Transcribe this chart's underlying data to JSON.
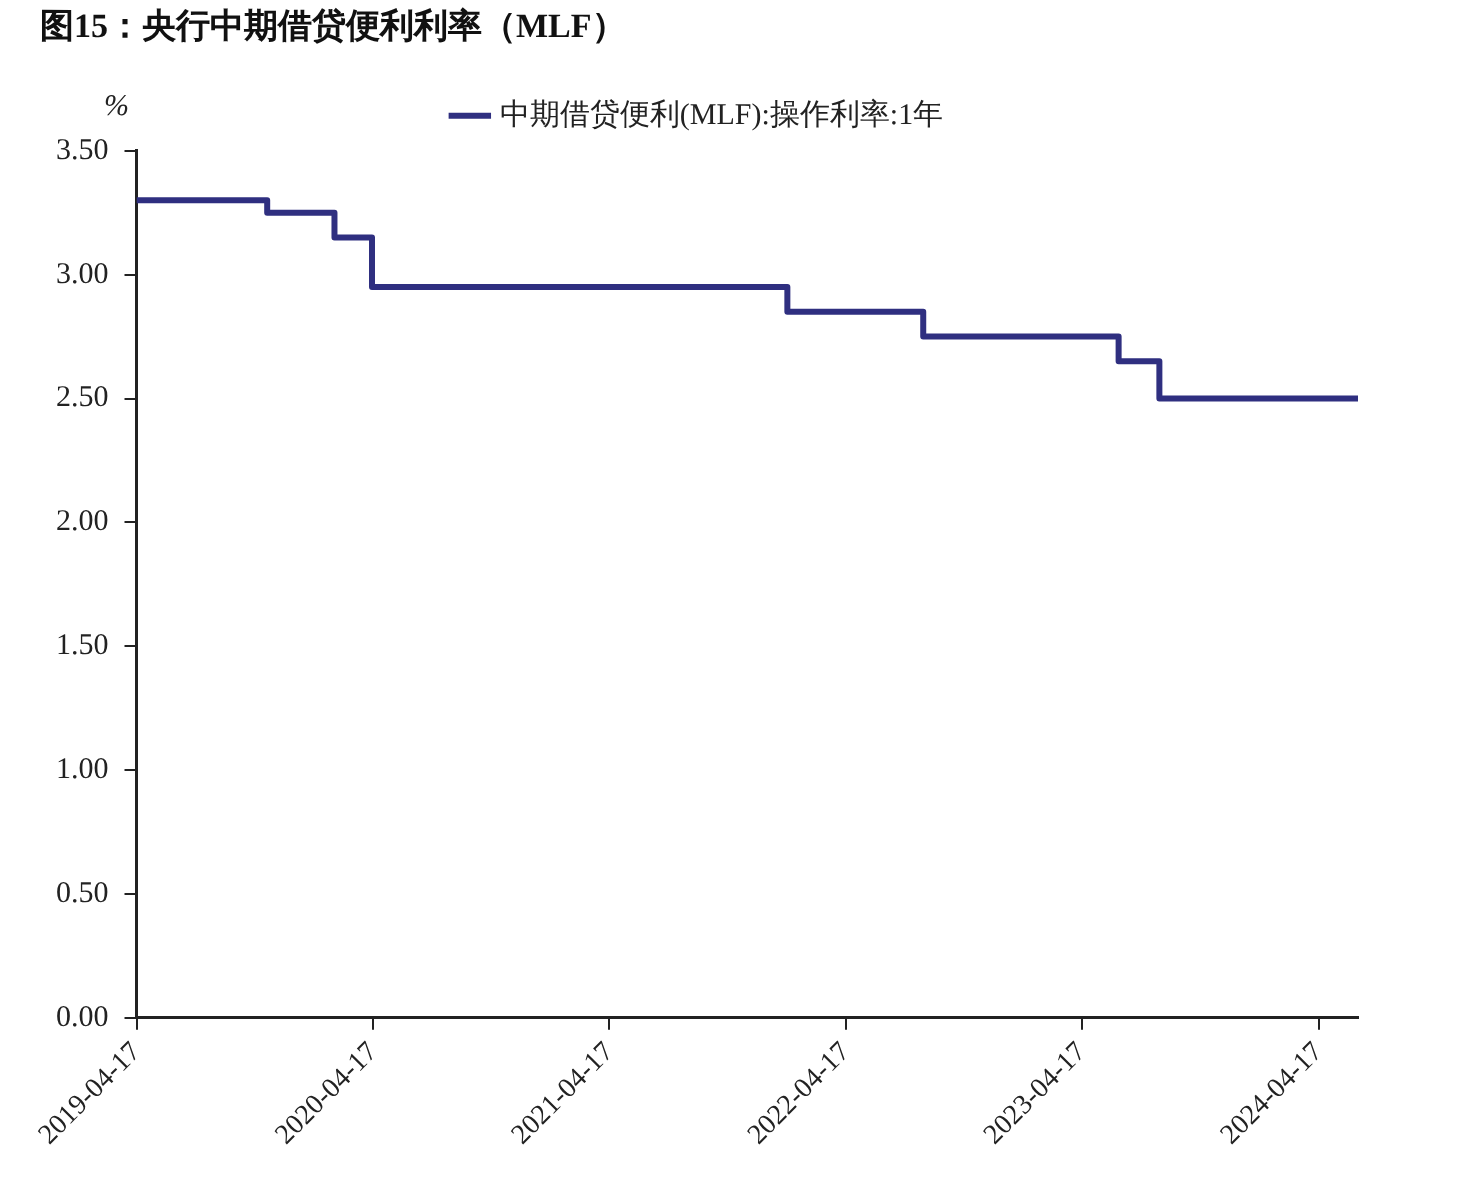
{
  "chart_data": {
    "type": "step",
    "title": "图15：央行中期借贷便利利率（MLF）",
    "ylabel": "%",
    "x": [
      "2019-04-17",
      "2019-11-05",
      "2020-02-17",
      "2020-04-15",
      "2022-01-17",
      "2022-08-15",
      "2023-06-13",
      "2023-08-15",
      "2024-06-17"
    ],
    "series": [
      {
        "name": "中期借贷便利(MLF):操作利率:1年",
        "color": "#2f2f80",
        "values": [
          3.3,
          3.25,
          3.15,
          2.95,
          2.85,
          2.75,
          2.65,
          2.5,
          2.5
        ]
      }
    ],
    "xlim": [
      "2019-04-17",
      "2024-06-17"
    ],
    "xticks": [
      "2019-04-17",
      "2020-04-17",
      "2021-04-17",
      "2022-04-17",
      "2023-04-17",
      "2024-04-17"
    ],
    "ylim": [
      0,
      3.5
    ],
    "yticks": [
      {
        "value": 0,
        "label": "0.00"
      },
      {
        "value": 0.5,
        "label": "0.50"
      },
      {
        "value": 1,
        "label": "1.00"
      },
      {
        "value": 1.5,
        "label": "1.50"
      },
      {
        "value": 2,
        "label": "2.00"
      },
      {
        "value": 2.5,
        "label": "2.50"
      },
      {
        "value": 3,
        "label": "3.00"
      },
      {
        "value": 3.5,
        "label": "3.50"
      }
    ],
    "grid": false,
    "legend": "top",
    "marker": "none",
    "line_style": "solid"
  }
}
